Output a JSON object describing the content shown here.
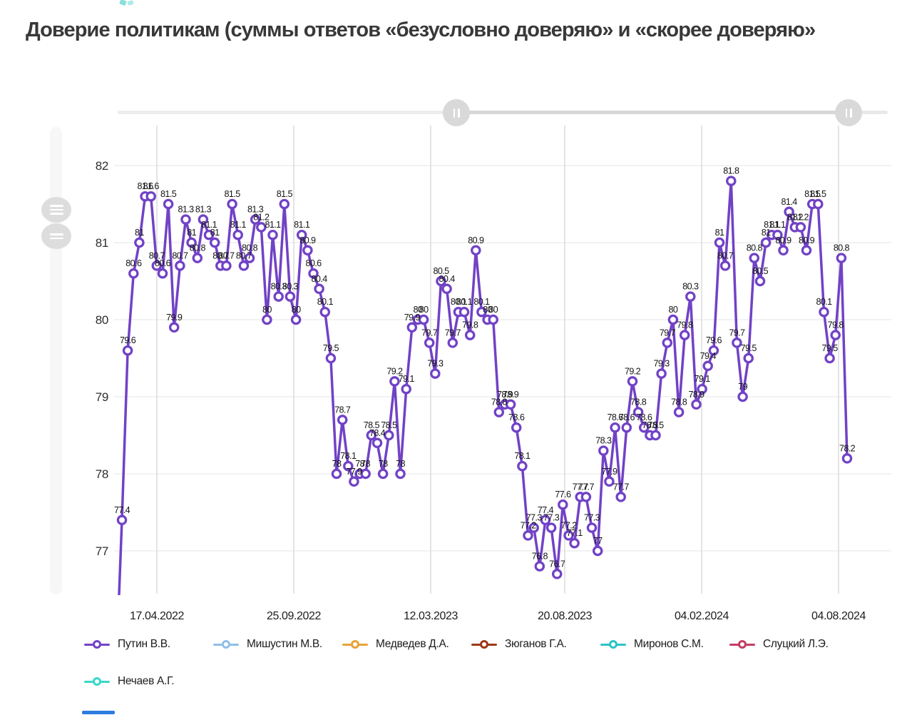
{
  "page": {
    "title": "Доверие политикам (суммы ответов «безусловно доверяю» и «скорее доверяю»"
  },
  "chart_data": {
    "type": "line",
    "title": "Доверие политикам (суммы ответов «безусловно доверяю» и «скорее доверяю»",
    "ylabel": "",
    "xlabel": "",
    "y_ticks": [
      82,
      81,
      80,
      79,
      78,
      77
    ],
    "y_range_visible": [
      76.4,
      82.5
    ],
    "grid": true,
    "legend_position": "bottom",
    "point_labels": true,
    "x_tick_labels": [
      "17.04.2022",
      "25.09.2022",
      "12.03.2023",
      "20.08.2023",
      "04.02.2024",
      "04.08.2024"
    ],
    "series": [
      {
        "name": "Путин В.В.",
        "color": "#7142c6",
        "values": [
          77.4,
          79.6,
          80.6,
          81,
          81.6,
          81.6,
          80.7,
          80.6,
          81.5,
          79.9,
          80.7,
          81.3,
          81,
          80.8,
          81.3,
          81.1,
          81,
          80.7,
          80.7,
          81.5,
          81.1,
          80.7,
          80.8,
          81.3,
          81.2,
          80,
          81.1,
          80.3,
          81.5,
          80.3,
          80,
          81.1,
          80.9,
          80.6,
          80.4,
          80.1,
          79.5,
          78,
          78.7,
          78.1,
          77.9,
          78,
          78,
          78.5,
          78.4,
          78,
          78.5,
          79.2,
          78,
          79.1,
          79.9,
          80,
          80,
          79.7,
          79.3,
          80.5,
          80.4,
          79.7,
          80.1,
          80.1,
          79.8,
          80.9,
          80.1,
          80,
          80,
          78.8,
          78.9,
          78.9,
          78.6,
          78.1,
          77.2,
          77.3,
          76.8,
          77.4,
          77.3,
          76.7,
          77.6,
          77.2,
          77.1,
          77.7,
          77.7,
          77.3,
          77,
          78.3,
          77.9,
          78.6,
          77.7,
          78.6,
          79.2,
          78.8,
          78.6,
          78.5,
          78.5,
          79.3,
          79.7,
          80,
          78.8,
          79.8,
          80.3,
          78.9,
          79.1,
          79.4,
          79.6,
          81,
          80.7,
          81.8,
          79.7,
          79,
          79.5,
          80.8,
          80.5,
          81,
          81.1,
          81.1,
          80.9,
          81.4,
          81.2,
          81.2,
          80.9,
          81.5,
          81.5,
          80.1,
          79.5,
          79.8,
          80.8,
          78.2
        ]
      },
      {
        "name": "Мишустин М.В.",
        "color": "#90bfe8",
        "values": []
      },
      {
        "name": "Медведев Д.А.",
        "color": "#e9a23a",
        "values": []
      },
      {
        "name": "Зюганов Г.А.",
        "color": "#9c3914",
        "values": []
      },
      {
        "name": "Миронов С.М.",
        "color": "#2cc3c6",
        "values": []
      },
      {
        "name": "Слуцкий Л.Э.",
        "color": "#c43d62",
        "values": []
      },
      {
        "name": "Нечаев А.Г.",
        "color": "#38d8c8",
        "values": []
      }
    ]
  },
  "controls": {
    "range_slider_handle_icon": "drag-bars-icon",
    "pan_button_icon": "menu-lines-icon"
  }
}
